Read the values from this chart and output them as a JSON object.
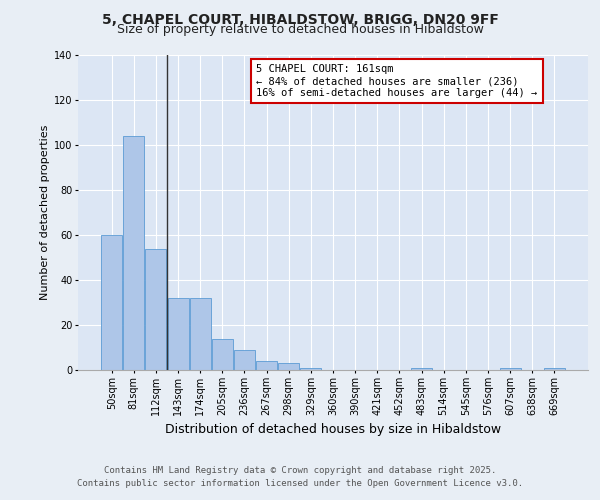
{
  "title_line1": "5, CHAPEL COURT, HIBALDSTOW, BRIGG, DN20 9FF",
  "title_line2": "Size of property relative to detached houses in Hibaldstow",
  "xlabel": "Distribution of detached houses by size in Hibaldstow",
  "ylabel": "Number of detached properties",
  "categories": [
    "50sqm",
    "81sqm",
    "112sqm",
    "143sqm",
    "174sqm",
    "205sqm",
    "236sqm",
    "267sqm",
    "298sqm",
    "329sqm",
    "360sqm",
    "390sqm",
    "421sqm",
    "452sqm",
    "483sqm",
    "514sqm",
    "545sqm",
    "576sqm",
    "607sqm",
    "638sqm",
    "669sqm"
  ],
  "values": [
    60,
    104,
    54,
    32,
    32,
    14,
    9,
    4,
    3,
    1,
    0,
    0,
    0,
    0,
    1,
    0,
    0,
    0,
    1,
    0,
    1
  ],
  "bar_color": "#aec6e8",
  "bar_edge_color": "#5b9bd5",
  "annotation_line1": "5 CHAPEL COURT: 161sqm",
  "annotation_line2": "← 84% of detached houses are smaller (236)",
  "annotation_line3": "16% of semi-detached houses are larger (44) →",
  "annotation_box_facecolor": "#ffffff",
  "annotation_box_edgecolor": "#cc0000",
  "vline_x": 2.5,
  "ylim": [
    0,
    140
  ],
  "yticks": [
    0,
    20,
    40,
    60,
    80,
    100,
    120,
    140
  ],
  "bg_color": "#dce6f4",
  "grid_color": "#ffffff",
  "fig_bg_color": "#e8eef5",
  "footer_line1": "Contains HM Land Registry data © Crown copyright and database right 2025.",
  "footer_line2": "Contains public sector information licensed under the Open Government Licence v3.0.",
  "title_fontsize": 10,
  "subtitle_fontsize": 9,
  "xlabel_fontsize": 9,
  "ylabel_fontsize": 8,
  "tick_fontsize": 7,
  "annotation_fontsize": 7.5,
  "footer_fontsize": 6.5
}
